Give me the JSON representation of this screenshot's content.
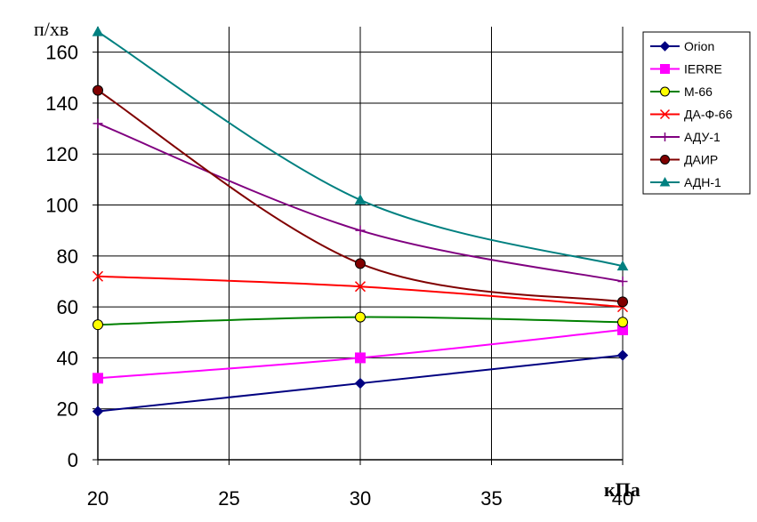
{
  "chart_data": {
    "type": "line",
    "ylabel": "п/хв",
    "xlabel": "кПа",
    "xlim": [
      20,
      40
    ],
    "ylim": [
      0,
      170
    ],
    "xticks": [
      20,
      25,
      30,
      35,
      40
    ],
    "yticks": [
      0,
      20,
      40,
      60,
      80,
      100,
      120,
      140,
      160
    ],
    "grid": true,
    "legend_position": "top-right",
    "x": [
      20,
      30,
      40
    ],
    "series": [
      {
        "name": "Orion",
        "color": "#000080",
        "marker": "diamond",
        "values": [
          19,
          30,
          41
        ]
      },
      {
        "name": "IERRE",
        "color": "#FF00FF",
        "marker": "square",
        "values": [
          32,
          40,
          51
        ]
      },
      {
        "name": "М-66",
        "color": "#008000",
        "marker": "circle",
        "marker_fill": "#FFFF00",
        "values": [
          53,
          56,
          54
        ]
      },
      {
        "name": "ДА-Ф-66",
        "color": "#FF0000",
        "marker": "x",
        "values": [
          72,
          68,
          60
        ]
      },
      {
        "name": "АДУ-1",
        "color": "#800080",
        "marker": "plus",
        "values": [
          132,
          90,
          70
        ]
      },
      {
        "name": "ДАИР",
        "color": "#800000",
        "marker": "circle",
        "marker_fill": "#800000",
        "values": [
          145,
          77,
          62
        ]
      },
      {
        "name": "АДН-1",
        "color": "#008080",
        "marker": "triangle",
        "values": [
          168,
          102,
          76
        ]
      }
    ]
  }
}
